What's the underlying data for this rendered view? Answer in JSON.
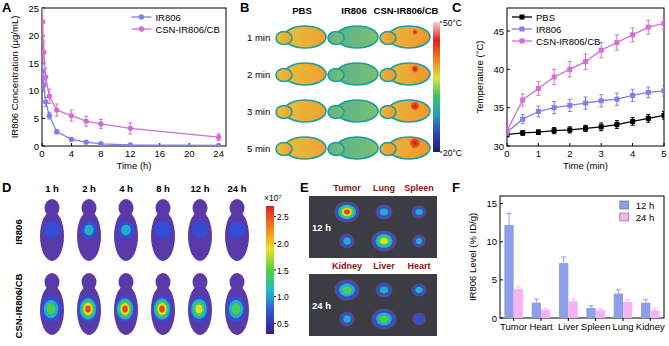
{
  "panel_labels": [
    "A",
    "B",
    "C",
    "D",
    "E",
    "F"
  ],
  "chart_data": [
    {
      "type": "line",
      "x_label": "Time (h)",
      "y_label": "IR806 Concentration (μg/mL)",
      "x": [
        0.083,
        0.25,
        0.5,
        1,
        2,
        4,
        6,
        8,
        12,
        24
      ],
      "xlim": [
        0,
        25
      ],
      "xticks": [
        0,
        4,
        8,
        12,
        16,
        20,
        24
      ],
      "ylim": [
        0,
        25
      ],
      "yticks": [
        0,
        5,
        10,
        15,
        20,
        25
      ],
      "legend": "upper right",
      "marker": "circle",
      "series": [
        {
          "name": "IR806",
          "color": "#7f7fef",
          "values": [
            13.5,
            11,
            8,
            5.5,
            2.6,
            1.2,
            0.7,
            0.4,
            0.2,
            0.1
          ],
          "errors": [
            1.2,
            1,
            0.8,
            0.6,
            0.4,
            0.3,
            0.2,
            0.2,
            0.1,
            0.1
          ]
        },
        {
          "name": "CSN-IR806/CB",
          "color": "#d36fd3",
          "values": [
            22.5,
            17,
            12.5,
            9,
            6.5,
            5.5,
            4.5,
            4,
            3.2,
            1.6
          ],
          "errors": [
            2.5,
            2,
            1.6,
            1.3,
            1.1,
            1,
            0.9,
            0.8,
            1,
            0.6
          ]
        }
      ]
    },
    {
      "type": "line",
      "x_label": "Time (min)",
      "y_label": "Temperature (°C)",
      "x": [
        0,
        0.5,
        1,
        1.5,
        2,
        2.5,
        3,
        3.5,
        4,
        4.5,
        5
      ],
      "xlim": [
        0,
        5
      ],
      "xticks": [
        0,
        1,
        2,
        3,
        4,
        5
      ],
      "ylim": [
        30,
        48
      ],
      "yticks": [
        30,
        35,
        40,
        45
      ],
      "legend": "upper left",
      "marker": "square",
      "series": [
        {
          "name": "PBS",
          "color": "#000000",
          "values": [
            31.5,
            31.7,
            31.8,
            32,
            32.1,
            32.3,
            32.5,
            32.8,
            33.2,
            33.6,
            34
          ],
          "errors": [
            0.3,
            0.3,
            0.3,
            0.4,
            0.4,
            0.4,
            0.5,
            0.5,
            0.5,
            0.5,
            0.5
          ]
        },
        {
          "name": "IR806",
          "color": "#7f7fef",
          "values": [
            31.8,
            33.5,
            34.5,
            35,
            35.3,
            35.6,
            35.9,
            36.1,
            36.6,
            37,
            37.2
          ],
          "errors": [
            0.4,
            0.6,
            0.7,
            0.8,
            0.8,
            0.8,
            0.8,
            0.8,
            0.8,
            0.7,
            0.7
          ]
        },
        {
          "name": "CSN-IR806/CB",
          "color": "#d36fd3",
          "values": [
            32,
            36,
            37.5,
            39,
            40,
            41,
            42.5,
            43.5,
            44.5,
            45.5,
            46
          ],
          "errors": [
            0.4,
            0.8,
            0.9,
            1,
            1,
            1,
            1,
            1,
            0.9,
            0.9,
            0.8
          ]
        }
      ]
    },
    {
      "type": "bar",
      "y_label": "IR806 Level (% ID/g)",
      "categories": [
        "Tumor",
        "Heart",
        "Liver",
        "Spleen",
        "Lung",
        "Kidney"
      ],
      "ylim": [
        0,
        16
      ],
      "yticks": [
        0,
        5,
        10,
        15
      ],
      "legend": "upper right",
      "series": [
        {
          "name": "12 h",
          "color": "#8c9fe8",
          "values": [
            12.2,
            2,
            7.2,
            1.3,
            3.2,
            2
          ],
          "errors": [
            1.5,
            0.5,
            0.8,
            0.3,
            0.5,
            0.4
          ]
        },
        {
          "name": "24 h",
          "color": "#f5b3f5",
          "values": [
            3.8,
            1.1,
            2.2,
            1,
            2.1,
            1
          ],
          "errors": [
            0.3,
            0.2,
            0.3,
            0.2,
            0.3,
            0.3
          ]
        }
      ]
    }
  ],
  "thermal_images": {
    "columns": [
      "PBS",
      "IR806",
      "CSN-IR806/CB"
    ],
    "rows": [
      "1 min",
      "2 min",
      "3 min",
      "5 min"
    ],
    "colorbar_range": [
      20,
      50
    ],
    "colorbar_ticks": [
      {
        "value": 50,
        "label": "50°C"
      },
      {
        "value": 20,
        "label": "20°C"
      }
    ]
  },
  "fluorescence_images": {
    "columns": [
      "1 h",
      "2 h",
      "4 h",
      "8 h",
      "12 h",
      "24 h"
    ],
    "rows": [
      "IR806",
      "CSN-IR806/CB"
    ],
    "colorbar_unit": "×10⁷",
    "colorbar_range": [
      0.3,
      2.7
    ],
    "colorbar_ticks": [
      0.5,
      {
        "value": 1,
        "label": "1.0"
      },
      1.5,
      {
        "value": 2,
        "label": "2.0"
      },
      2.5
    ]
  },
  "ex_vivo_images": {
    "organ_rows": [
      [
        "Tumor",
        "Lung",
        "Spleen"
      ],
      [
        "Kidney",
        "Liver",
        "Heart"
      ]
    ],
    "times": [
      "12 h",
      "24 h"
    ]
  }
}
